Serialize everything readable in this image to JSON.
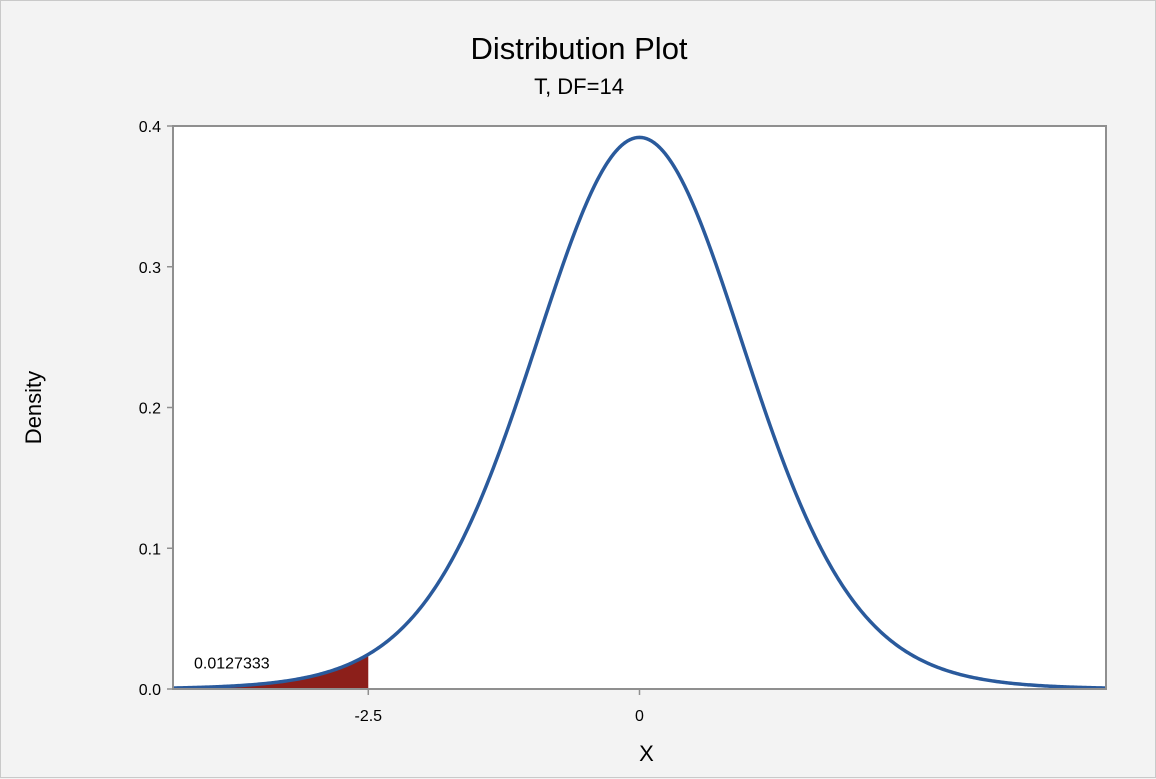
{
  "chart_data": {
    "type": "area",
    "title": "Distribution Plot",
    "subtitle": "T, DF=14",
    "distribution": "T",
    "df": 14,
    "xlabel": "X",
    "ylabel": "Density",
    "xlim": [
      -4.3,
      4.3
    ],
    "ylim": [
      0,
      0.4
    ],
    "y_ticks": [
      0.0,
      0.1,
      0.2,
      0.3,
      0.4
    ],
    "y_tick_labels": [
      "0.0",
      "0.1",
      "0.2",
      "0.3",
      "0.4"
    ],
    "x_ticks": [
      -2.5,
      0
    ],
    "x_tick_labels": [
      "-2.5",
      "0"
    ],
    "shaded_region": {
      "from": -4.3,
      "to": -2.5,
      "area_label": "0.0127333"
    },
    "grid": false,
    "colors": {
      "curve": "#2a5a9c",
      "shade": "#8c1f1a",
      "frame": "#8f8f8f",
      "background": "#f3f3f3",
      "plot_bg": "#ffffff"
    }
  }
}
